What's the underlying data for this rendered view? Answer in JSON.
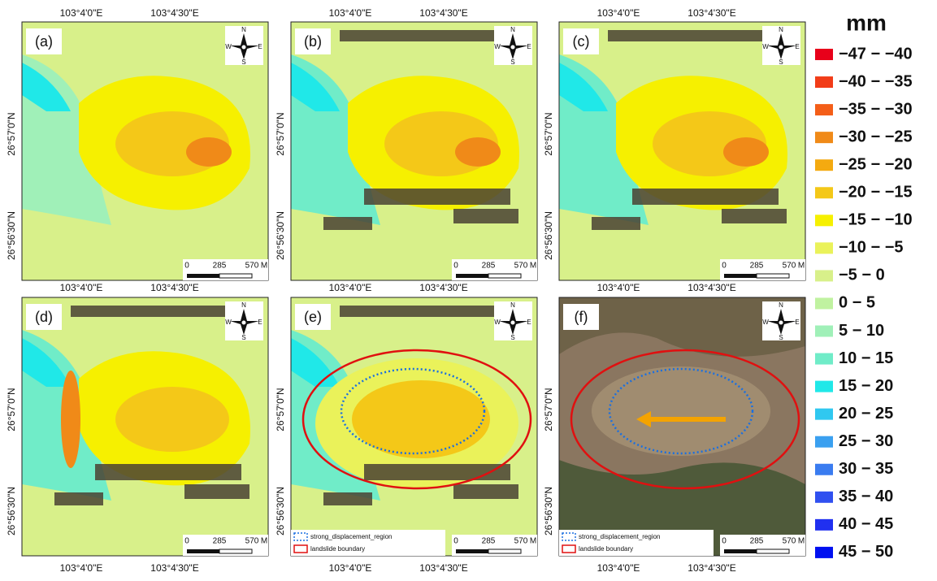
{
  "panels": [
    {
      "label": "(a)"
    },
    {
      "label": "(b)"
    },
    {
      "label": "(c)"
    },
    {
      "label": "(d)"
    },
    {
      "label": "(e)"
    },
    {
      "label": "(f)"
    }
  ],
  "x_tick_labels": [
    "103°4'0\"E",
    "103°4'30\"E"
  ],
  "y_tick_labels": [
    "26°57'0\"N",
    "26°56'30\"N"
  ],
  "scale_labels": [
    "0",
    "285",
    "570",
    "M"
  ],
  "compass": {
    "north": "N",
    "south": "S",
    "east": "E",
    "west": "W"
  },
  "map_legend": {
    "region": "strong_displacement_region",
    "boundary": "landslide boundary"
  },
  "legend": {
    "title": "mm",
    "items": [
      {
        "label": "−47 − −40",
        "color": "#e8001a"
      },
      {
        "label": "−40 − −35",
        "color": "#f23c18"
      },
      {
        "label": "−35 − −30",
        "color": "#f45e18"
      },
      {
        "label": "−30 − −25",
        "color": "#f08a18"
      },
      {
        "label": "−25 − −20",
        "color": "#f4aa10"
      },
      {
        "label": "−20 − −15",
        "color": "#f4c818"
      },
      {
        "label": "−15 − −10",
        "color": "#f6f000"
      },
      {
        "label": "−10 − −5",
        "color": "#eaf25a"
      },
      {
        "label": "−5 − 0",
        "color": "#d8f08a"
      },
      {
        "label": "0 − 5",
        "color": "#c0f2a0"
      },
      {
        "label": "5 − 10",
        "color": "#a0f0b8"
      },
      {
        "label": "10 − 15",
        "color": "#70ecc8"
      },
      {
        "label": "15 − 20",
        "color": "#20e8e8"
      },
      {
        "label": "20 − 25",
        "color": "#30c8f0"
      },
      {
        "label": "25 − 30",
        "color": "#3aa0f0"
      },
      {
        "label": "30 − 35",
        "color": "#3a7cf0"
      },
      {
        "label": "35 − 40",
        "color": "#3050f0"
      },
      {
        "label": "40 − 45",
        "color": "#2030f0"
      },
      {
        "label": "45 − 50",
        "color": "#0010f0"
      }
    ]
  }
}
